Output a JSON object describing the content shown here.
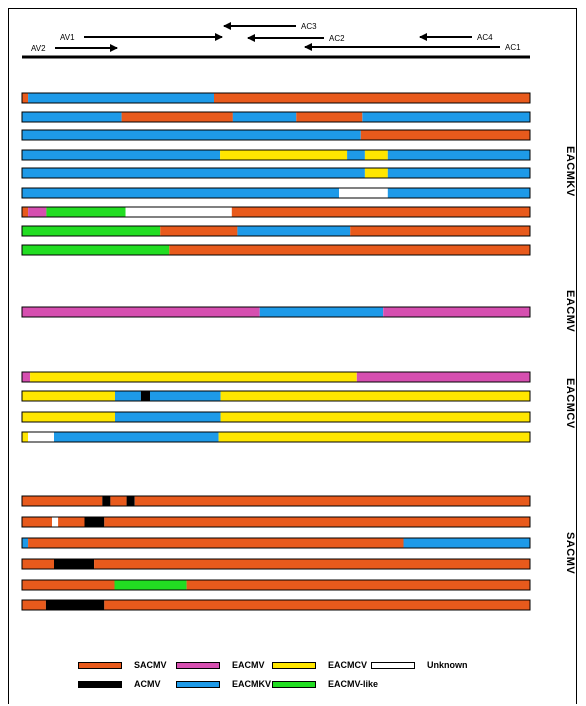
{
  "colors": {
    "SACMV": "#e85a1c",
    "EACMV": "#d64fb0",
    "EACMCV": "#ffe600",
    "Unknown": "#ffffff",
    "ACMV": "#000000",
    "EACMKV": "#1e9ae8",
    "EACMV-like": "#22dd22"
  },
  "genome_map": {
    "arrows": [
      {
        "label": "AV1"
      },
      {
        "label": "AV2"
      },
      {
        "label": "AC3"
      },
      {
        "label": "AC2"
      },
      {
        "label": "AC4"
      },
      {
        "label": "AC1"
      }
    ]
  },
  "groups": [
    {
      "label": "EACMKV",
      "bars": [
        [
          {
            "from": 0.0,
            "to": 0.012,
            "color": "SACMV"
          },
          {
            "from": 0.012,
            "to": 0.378,
            "color": "EACMKV"
          },
          {
            "from": 0.378,
            "to": 1.0,
            "color": "SACMV"
          }
        ],
        [
          {
            "from": 0.0,
            "to": 0.196,
            "color": "EACMKV"
          },
          {
            "from": 0.196,
            "to": 0.415,
            "color": "SACMV"
          },
          {
            "from": 0.415,
            "to": 0.54,
            "color": "EACMKV"
          },
          {
            "from": 0.54,
            "to": 0.67,
            "color": "SACMV"
          },
          {
            "from": 0.67,
            "to": 1.0,
            "color": "EACMKV"
          }
        ],
        [
          {
            "from": 0.0,
            "to": 0.667,
            "color": "EACMKV"
          },
          {
            "from": 0.667,
            "to": 1.0,
            "color": "SACMV"
          }
        ],
        [
          {
            "from": 0.0,
            "to": 0.39,
            "color": "EACMKV"
          },
          {
            "from": 0.39,
            "to": 0.64,
            "color": "EACMCV"
          },
          {
            "from": 0.64,
            "to": 0.675,
            "color": "EACMKV"
          },
          {
            "from": 0.675,
            "to": 0.72,
            "color": "EACMCV"
          },
          {
            "from": 0.72,
            "to": 1.0,
            "color": "EACMKV"
          }
        ],
        [
          {
            "from": 0.0,
            "to": 0.675,
            "color": "EACMKV"
          },
          {
            "from": 0.675,
            "to": 0.72,
            "color": "EACMCV"
          },
          {
            "from": 0.72,
            "to": 1.0,
            "color": "EACMKV"
          }
        ],
        [
          {
            "from": 0.0,
            "to": 0.624,
            "color": "EACMKV"
          },
          {
            "from": 0.624,
            "to": 0.72,
            "color": "Unknown"
          },
          {
            "from": 0.72,
            "to": 1.0,
            "color": "EACMKV"
          }
        ],
        [
          {
            "from": 0.0,
            "to": 0.012,
            "color": "SACMV"
          },
          {
            "from": 0.012,
            "to": 0.048,
            "color": "EACMV"
          },
          {
            "from": 0.048,
            "to": 0.204,
            "color": "EACMV-like"
          },
          {
            "from": 0.204,
            "to": 0.413,
            "color": "Unknown"
          },
          {
            "from": 0.413,
            "to": 1.0,
            "color": "SACMV"
          }
        ],
        [
          {
            "from": 0.0,
            "to": 0.272,
            "color": "EACMV-like"
          },
          {
            "from": 0.272,
            "to": 0.424,
            "color": "SACMV"
          },
          {
            "from": 0.424,
            "to": 0.646,
            "color": "EACMKV"
          },
          {
            "from": 0.646,
            "to": 1.0,
            "color": "SACMV"
          }
        ],
        [
          {
            "from": 0.0,
            "to": 0.29,
            "color": "EACMV-like"
          },
          {
            "from": 0.29,
            "to": 1.0,
            "color": "SACMV"
          }
        ]
      ]
    },
    {
      "label": "EACMV",
      "bars": [
        [
          {
            "from": 0.0,
            "to": 0.468,
            "color": "EACMV"
          },
          {
            "from": 0.468,
            "to": 0.711,
            "color": "EACMKV"
          },
          {
            "from": 0.711,
            "to": 1.0,
            "color": "EACMV"
          }
        ]
      ]
    },
    {
      "label": "EACMCV",
      "bars": [
        [
          {
            "from": 0.0,
            "to": 0.016,
            "color": "EACMV"
          },
          {
            "from": 0.016,
            "to": 0.659,
            "color": "EACMCV"
          },
          {
            "from": 0.659,
            "to": 1.0,
            "color": "EACMV"
          }
        ],
        [
          {
            "from": 0.0,
            "to": 0.183,
            "color": "EACMCV"
          },
          {
            "from": 0.183,
            "to": 0.234,
            "color": "EACMKV"
          },
          {
            "from": 0.234,
            "to": 0.252,
            "color": "ACMV"
          },
          {
            "from": 0.252,
            "to": 0.391,
            "color": "EACMKV"
          },
          {
            "from": 0.391,
            "to": 1.0,
            "color": "EACMCV"
          }
        ],
        [
          {
            "from": 0.0,
            "to": 0.183,
            "color": "EACMCV"
          },
          {
            "from": 0.183,
            "to": 0.391,
            "color": "EACMKV"
          },
          {
            "from": 0.391,
            "to": 1.0,
            "color": "EACMCV"
          }
        ],
        [
          {
            "from": 0.0,
            "to": 0.012,
            "color": "EACMCV"
          },
          {
            "from": 0.012,
            "to": 0.063,
            "color": "Unknown"
          },
          {
            "from": 0.063,
            "to": 0.387,
            "color": "EACMKV"
          },
          {
            "from": 0.387,
            "to": 1.0,
            "color": "EACMCV"
          }
        ]
      ]
    },
    {
      "label": "SACMV",
      "bars": [
        [
          {
            "from": 0.0,
            "to": 0.158,
            "color": "SACMV"
          },
          {
            "from": 0.158,
            "to": 0.174,
            "color": "ACMV"
          },
          {
            "from": 0.174,
            "to": 0.206,
            "color": "SACMV"
          },
          {
            "from": 0.206,
            "to": 0.222,
            "color": "ACMV"
          },
          {
            "from": 0.222,
            "to": 1.0,
            "color": "SACMV"
          }
        ],
        [
          {
            "from": 0.0,
            "to": 0.059,
            "color": "SACMV"
          },
          {
            "from": 0.059,
            "to": 0.071,
            "color": "Unknown"
          },
          {
            "from": 0.071,
            "to": 0.123,
            "color": "SACMV"
          },
          {
            "from": 0.123,
            "to": 0.162,
            "color": "ACMV"
          },
          {
            "from": 0.162,
            "to": 1.0,
            "color": "SACMV"
          }
        ],
        [
          {
            "from": 0.0,
            "to": 0.012,
            "color": "EACMKV"
          },
          {
            "from": 0.012,
            "to": 0.751,
            "color": "SACMV"
          },
          {
            "from": 0.751,
            "to": 1.0,
            "color": "EACMKV"
          }
        ],
        [
          {
            "from": 0.0,
            "to": 0.063,
            "color": "SACMV"
          },
          {
            "from": 0.063,
            "to": 0.142,
            "color": "ACMV"
          },
          {
            "from": 0.142,
            "to": 1.0,
            "color": "SACMV"
          }
        ],
        [
          {
            "from": 0.0,
            "to": 0.182,
            "color": "SACMV"
          },
          {
            "from": 0.182,
            "to": 0.324,
            "color": "EACMV-like"
          },
          {
            "from": 0.324,
            "to": 1.0,
            "color": "SACMV"
          }
        ],
        [
          {
            "from": 0.0,
            "to": 0.047,
            "color": "SACMV"
          },
          {
            "from": 0.047,
            "to": 0.162,
            "color": "ACMV"
          },
          {
            "from": 0.162,
            "to": 1.0,
            "color": "SACMV"
          }
        ]
      ]
    }
  ],
  "legend": [
    {
      "label": "SACMV",
      "color": "SACMV"
    },
    {
      "label": "EACMV",
      "color": "EACMV"
    },
    {
      "label": "EACMCV",
      "color": "EACMCV"
    },
    {
      "label": "Unknown",
      "color": "Unknown"
    },
    {
      "label": "ACMV",
      "color": "ACMV"
    },
    {
      "label": "EACMKV",
      "color": "EACMKV"
    },
    {
      "label": "EACMV-like",
      "color": "EACMV-like"
    }
  ]
}
